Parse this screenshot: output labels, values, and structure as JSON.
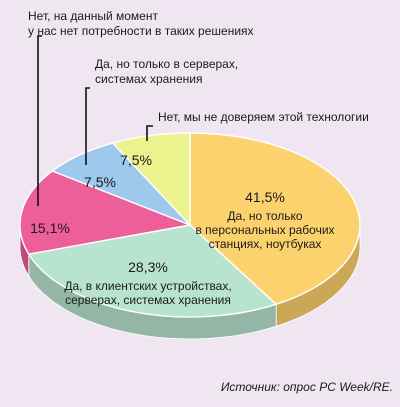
{
  "chart_data": {
    "type": "pie",
    "title": "",
    "slices": [
      {
        "label": "Да, но только в персональных рабочих станциях, ноутбуках",
        "label_lines": [
          "Да, но только",
          "в персональных рабочих",
          "станциях, ноутбуках"
        ],
        "value": 41.5,
        "value_label": "41,5%",
        "color": "#fcd26e"
      },
      {
        "label": "Да, в клиентских устройствах, серверах, системах хранения",
        "label_lines": [
          "Да, в клиентских устройствах,",
          "серверах, системах хранения"
        ],
        "value": 28.3,
        "value_label": "28,3%",
        "color": "#b8e3cf"
      },
      {
        "label": "Нет, на данный момент у нас нет потребности в таких решениях",
        "label_lines": [
          "Нет, на данный момент",
          "у нас нет потребности в таких решениях"
        ],
        "value": 15.1,
        "value_label": "15,1%",
        "color": "#ec5f9a"
      },
      {
        "label": "Да, но только в серверах, системах хранения",
        "label_lines": [
          "Да, но только в серверах,",
          "системах хранения"
        ],
        "value": 7.5,
        "value_label": "7,5%",
        "color": "#9ec9ec"
      },
      {
        "label": "Нет, мы не доверяем этой технологии",
        "label_lines": [
          "Нет, мы не доверяем этой технологии"
        ],
        "value": 7.5,
        "value_label": "7,5%",
        "color": "#ecf28e"
      }
    ]
  },
  "source": "Источник: опрос PC Week/RE."
}
